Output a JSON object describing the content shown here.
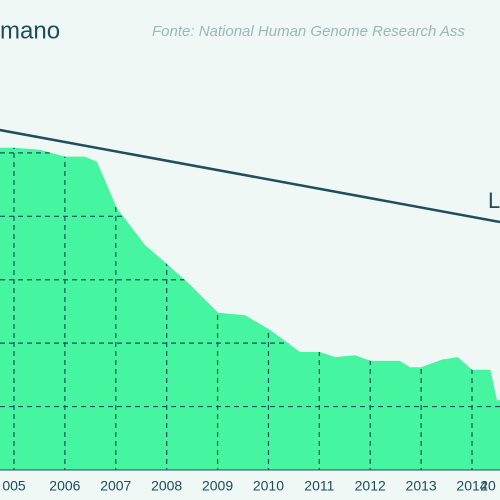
{
  "chart_data": {
    "type": "area",
    "title": "mano",
    "source": "Fonte: National Human Genome Research Ass",
    "x": [
      2004.72,
      2005,
      2005.51,
      2006,
      2006.39,
      2006.63,
      2007.02,
      2007.57,
      2008.03,
      2008.46,
      2009.01,
      2009.54,
      2010.03,
      2010.62,
      2011.01,
      2011.31,
      2011.7,
      2012.01,
      2012.58,
      2012.78,
      2013,
      2013.41,
      2013.72,
      2014,
      2014.36,
      2014.49,
      2014.55
    ],
    "series": [
      {
        "name": "L",
        "kind": "line",
        "color": "#1f4f5c",
        "x": [
          2004.72,
          2014.55
        ],
        "values": [
          5.36,
          3.91
        ]
      },
      {
        "kind": "area",
        "color": "#45f59f",
        "values": [
          5.08,
          5.08,
          5.05,
          4.94,
          4.94,
          4.86,
          4.13,
          3.55,
          3.23,
          2.92,
          2.48,
          2.44,
          2.21,
          1.86,
          1.86,
          1.78,
          1.81,
          1.72,
          1.72,
          1.62,
          1.62,
          1.74,
          1.78,
          1.58,
          1.58,
          1.1,
          1.1
        ]
      }
    ],
    "xlim": [
      2004.725,
      2014.55
    ],
    "xticks": [
      {
        "value": 2005,
        "label": "005"
      },
      2006,
      2007,
      2008,
      2009,
      2010,
      2011,
      2012,
      2013,
      2014,
      {
        "value": 2015,
        "label": "20"
      }
    ],
    "ylim": [
      0,
      7.41
    ],
    "yticks": [
      1,
      2,
      3,
      4,
      5
    ],
    "grid": true
  }
}
